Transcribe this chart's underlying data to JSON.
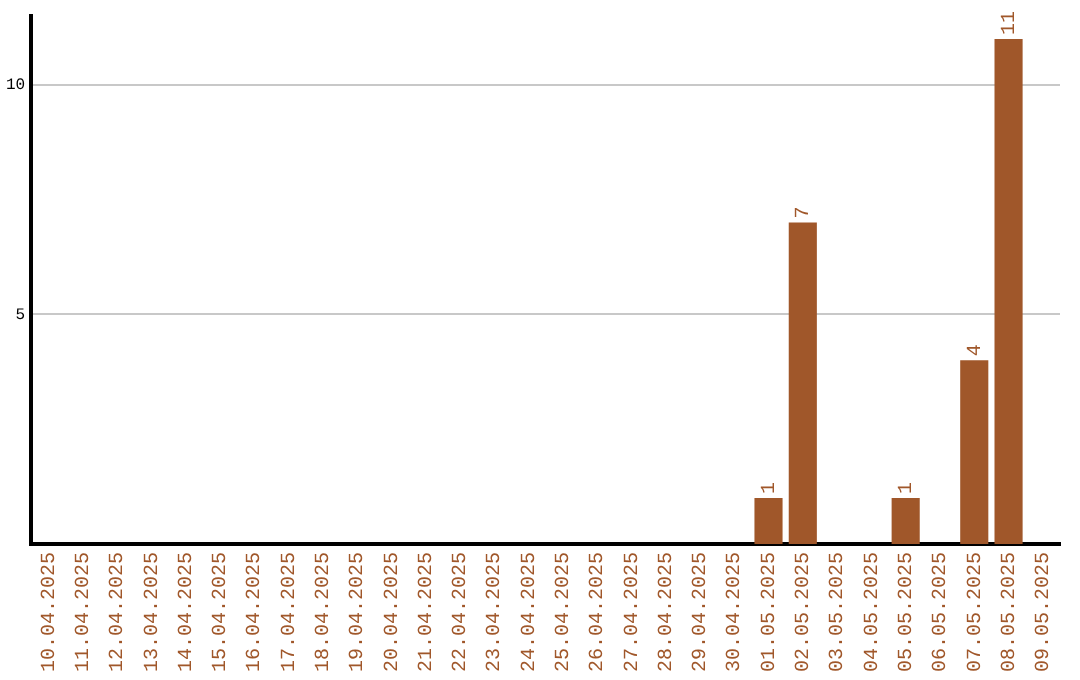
{
  "chart_data": {
    "type": "bar",
    "categories": [
      "10.04.2025",
      "11.04.2025",
      "12.04.2025",
      "13.04.2025",
      "14.04.2025",
      "15.04.2025",
      "16.04.2025",
      "17.04.2025",
      "18.04.2025",
      "19.04.2025",
      "20.04.2025",
      "21.04.2025",
      "22.04.2025",
      "23.04.2025",
      "24.04.2025",
      "25.04.2025",
      "26.04.2025",
      "27.04.2025",
      "28.04.2025",
      "29.04.2025",
      "30.04.2025",
      "01.05.2025",
      "02.05.2025",
      "03.05.2025",
      "04.05.2025",
      "05.05.2025",
      "06.05.2025",
      "07.05.2025",
      "08.05.2025",
      "09.05.2025"
    ],
    "values": [
      0,
      0,
      0,
      0,
      0,
      0,
      0,
      0,
      0,
      0,
      0,
      0,
      0,
      0,
      0,
      0,
      0,
      0,
      0,
      0,
      0,
      1,
      7,
      0,
      0,
      1,
      0,
      4,
      11,
      0
    ],
    "value_labels": [
      null,
      null,
      null,
      null,
      null,
      null,
      null,
      null,
      null,
      null,
      null,
      null,
      null,
      null,
      null,
      null,
      null,
      null,
      null,
      null,
      null,
      "1",
      "7",
      null,
      null,
      "1",
      null,
      "4",
      "11",
      null
    ],
    "color": "#a0572a",
    "ylim": [
      0,
      11.5
    ],
    "yticks": [
      5,
      10
    ],
    "grid": "y",
    "legend": false
  }
}
